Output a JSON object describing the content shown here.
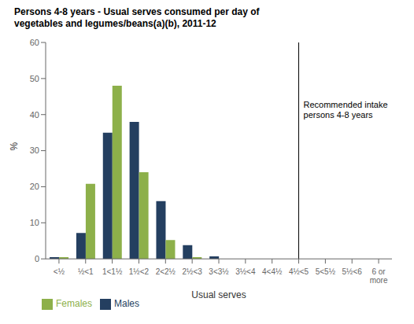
{
  "chart_data": {
    "type": "bar",
    "title": "Persons 4-8 years - Usual serves consumed per day of\nvegetables and legumes/beans(a)(b), 2011-12",
    "xlabel": "Usual serves",
    "ylabel": "%",
    "categories": [
      "<½",
      "½<1",
      "1<1½",
      "1½<2",
      "2<2½",
      "2½<3",
      "3<3½",
      "3½<4",
      "4<4½",
      "4½<5",
      "5<5½",
      "5½<6",
      "6 or\nmore"
    ],
    "series": [
      {
        "name": "Males",
        "color": "#243F60",
        "values": [
          0.5,
          7.2,
          35.0,
          38.0,
          16.0,
          3.8,
          0.7,
          0.0,
          0.0,
          0.0,
          0.0,
          0.0,
          0.0
        ]
      },
      {
        "name": "Females",
        "color": "#8DB04A",
        "values": [
          0.5,
          20.8,
          48.0,
          24.0,
          5.2,
          0.5,
          0.0,
          0.0,
          0.0,
          0.0,
          0.0,
          0.0,
          0.0
        ]
      }
    ],
    "ylim": [
      0,
      60
    ],
    "yticks": [
      0,
      10,
      20,
      30,
      40,
      50,
      60
    ],
    "annotations": [
      {
        "type": "vline",
        "x": "4½<5",
        "label": "Recommended intake\npersons 4-8 years"
      }
    ],
    "grid": false,
    "legend": "bottom"
  }
}
